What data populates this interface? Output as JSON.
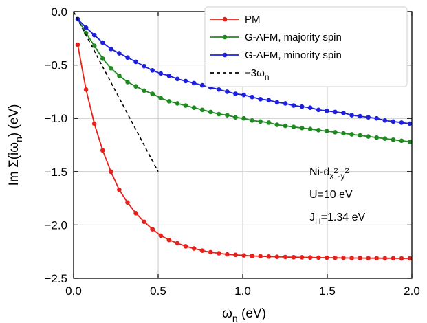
{
  "chart_data": {
    "type": "line",
    "title": "",
    "xlabel": "ωn (eV)",
    "ylabel": "Im Σ(iωn) (eV)",
    "xlim": [
      0.0,
      2.0
    ],
    "ylim": [
      -2.5,
      0.0
    ],
    "xticks": [
      0.0,
      0.5,
      1.0,
      1.5,
      2.0
    ],
    "xtick_labels": [
      "0.0",
      "0.5",
      "1.0",
      "1.5",
      "2.0"
    ],
    "yticks": [
      0.0,
      -0.5,
      -1.0,
      -1.5,
      -2.0,
      -2.5
    ],
    "ytick_labels": [
      "0.0",
      "−0.5",
      "−1.0",
      "−1.5",
      "−2.0",
      "−2.5"
    ],
    "grid": true,
    "legend_position": "top-right",
    "series": [
      {
        "name": "PM",
        "color": "#e8201a",
        "marker": "circle",
        "x": [
          0.0245,
          0.0736,
          0.1227,
          0.1718,
          0.2209,
          0.27,
          0.3191,
          0.3682,
          0.4172,
          0.4663,
          0.5154,
          0.5645,
          0.6136,
          0.6627,
          0.7118,
          0.7609,
          0.81,
          0.859,
          0.9081,
          0.9572,
          1.0063,
          1.0554,
          1.1045,
          1.1536,
          1.2027,
          1.2518,
          1.3008,
          1.3499,
          1.399,
          1.4481,
          1.4972,
          1.5463,
          1.5954,
          1.6445,
          1.6936,
          1.7426,
          1.7917,
          1.8408,
          1.8899,
          1.939,
          1.9881
        ],
        "y": [
          -0.31,
          -0.73,
          -1.05,
          -1.3,
          -1.5,
          -1.67,
          -1.79,
          -1.89,
          -1.97,
          -2.04,
          -2.1,
          -2.14,
          -2.17,
          -2.2,
          -2.22,
          -2.24,
          -2.255,
          -2.265,
          -2.275,
          -2.28,
          -2.285,
          -2.29,
          -2.293,
          -2.296,
          -2.298,
          -2.3,
          -2.302,
          -2.303,
          -2.305,
          -2.306,
          -2.307,
          -2.308,
          -2.309,
          -2.31,
          -2.31,
          -2.311,
          -2.311,
          -2.312,
          -2.312,
          -2.313,
          -2.313
        ]
      },
      {
        "name": "G-AFM, majority spin",
        "color": "#1f8a21",
        "marker": "circle",
        "x": [
          0.0245,
          0.0736,
          0.1227,
          0.1718,
          0.2209,
          0.27,
          0.3191,
          0.3682,
          0.4172,
          0.4663,
          0.5154,
          0.5645,
          0.6136,
          0.6627,
          0.7118,
          0.7609,
          0.81,
          0.859,
          0.9081,
          0.9572,
          1.0063,
          1.0554,
          1.1045,
          1.1536,
          1.2027,
          1.2518,
          1.3008,
          1.3499,
          1.399,
          1.4481,
          1.4972,
          1.5463,
          1.5954,
          1.6445,
          1.6936,
          1.7426,
          1.7917,
          1.8408,
          1.8899,
          1.939,
          1.9881
        ],
        "y": [
          -0.07,
          -0.2,
          -0.32,
          -0.44,
          -0.53,
          -0.6,
          -0.66,
          -0.7,
          -0.74,
          -0.77,
          -0.81,
          -0.84,
          -0.86,
          -0.88,
          -0.9,
          -0.92,
          -0.94,
          -0.96,
          -0.97,
          -0.99,
          -1.0,
          -1.02,
          -1.03,
          -1.04,
          -1.06,
          -1.07,
          -1.08,
          -1.09,
          -1.1,
          -1.11,
          -1.12,
          -1.13,
          -1.14,
          -1.15,
          -1.16,
          -1.17,
          -1.18,
          -1.19,
          -1.2,
          -1.21,
          -1.22
        ]
      },
      {
        "name": "G-AFM, minority spin",
        "color": "#1c1fdc",
        "marker": "circle",
        "x": [
          0.0245,
          0.0736,
          0.1227,
          0.1718,
          0.2209,
          0.27,
          0.3191,
          0.3682,
          0.4172,
          0.4663,
          0.5154,
          0.5645,
          0.6136,
          0.6627,
          0.7118,
          0.7609,
          0.81,
          0.859,
          0.9081,
          0.9572,
          1.0063,
          1.0554,
          1.1045,
          1.1536,
          1.2027,
          1.2518,
          1.3008,
          1.3499,
          1.399,
          1.4481,
          1.4972,
          1.5463,
          1.5954,
          1.6445,
          1.6936,
          1.7426,
          1.7917,
          1.8408,
          1.8899,
          1.939,
          1.9881
        ],
        "y": [
          -0.07,
          -0.15,
          -0.22,
          -0.29,
          -0.35,
          -0.39,
          -0.43,
          -0.47,
          -0.51,
          -0.55,
          -0.58,
          -0.6,
          -0.63,
          -0.65,
          -0.67,
          -0.69,
          -0.71,
          -0.73,
          -0.75,
          -0.77,
          -0.78,
          -0.8,
          -0.82,
          -0.83,
          -0.85,
          -0.86,
          -0.88,
          -0.89,
          -0.9,
          -0.92,
          -0.93,
          -0.94,
          -0.95,
          -0.97,
          -0.98,
          -0.99,
          -1.0,
          -1.02,
          -1.03,
          -1.04,
          -1.05
        ]
      },
      {
        "name": "−3ωn",
        "color": "#000000",
        "style": "dashed",
        "x": [
          0.0,
          0.5
        ],
        "y": [
          0.0,
          -1.5
        ]
      }
    ],
    "annotations": [
      "Ni-dx2-y2",
      "U=10 eV",
      "JH=1.34 eV"
    ]
  }
}
